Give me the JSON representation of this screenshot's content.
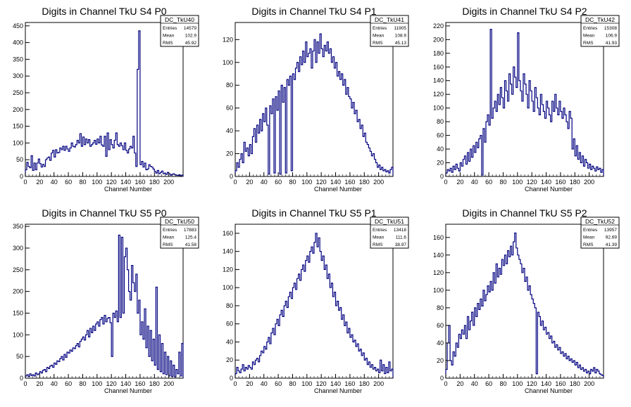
{
  "colors": {
    "histogram": "#000080",
    "axis": "#000000",
    "background": "#ffffff"
  },
  "chart_data": [
    {
      "type": "bar",
      "title": "Digits in Channel TkU S4 P0",
      "xlabel": "Channel Number",
      "ylabel": "",
      "xlim": [
        0,
        220
      ],
      "ylim": [
        0,
        460
      ],
      "xticks": [
        0,
        20,
        40,
        60,
        80,
        100,
        120,
        140,
        160,
        180,
        200
      ],
      "yticks": [
        0,
        50,
        100,
        150,
        200,
        250,
        300,
        350,
        400,
        450
      ],
      "stats": {
        "name": "DC_TkU40",
        "entries": "14579",
        "mean": "102.9",
        "rms": "45.92"
      },
      "series": [
        {
          "name": "",
          "x_start": 0,
          "bin_width": 2,
          "values": [
            20,
            42,
            30,
            26,
            62,
            18,
            40,
            20,
            40,
            52,
            38,
            28,
            36,
            30,
            50,
            55,
            58,
            48,
            70,
            78,
            58,
            80,
            70,
            72,
            85,
            80,
            90,
            78,
            90,
            82,
            75,
            85,
            100,
            90,
            88,
            95,
            108,
            100,
            128,
            90,
            118,
            95,
            112,
            100,
            110,
            90,
            95,
            100,
            108,
            96,
            112,
            100,
            120,
            94,
            90,
            120,
            60,
            130,
            80,
            110,
            95,
            85,
            108,
            130,
            95,
            90,
            100,
            92,
            80,
            100,
            78,
            70,
            82,
            90,
            85,
            120,
            70,
            30,
            320,
            435,
            35,
            45,
            28,
            40,
            20,
            22,
            35,
            30,
            28,
            22,
            15,
            10,
            18,
            8,
            12,
            16,
            8,
            10,
            6,
            12,
            8,
            4,
            6,
            8,
            5,
            4,
            3,
            5,
            2,
            4
          ]
        }
      ]
    },
    {
      "type": "bar",
      "title": "Digits in Channel TkU S4 P1",
      "xlabel": "Channel Number",
      "ylabel": "",
      "xlim": [
        0,
        220
      ],
      "ylim": [
        0,
        135
      ],
      "xticks": [
        0,
        20,
        40,
        60,
        80,
        100,
        120,
        140,
        160,
        180,
        200
      ],
      "yticks": [
        0,
        20,
        40,
        60,
        80,
        100,
        120
      ],
      "stats": {
        "name": "DC_TkU41",
        "entries": "11905",
        "mean": "108.9",
        "rms": "45.13"
      },
      "series": [
        {
          "name": "",
          "x_start": 0,
          "bin_width": 2,
          "values": [
            5,
            12,
            8,
            15,
            20,
            12,
            30,
            22,
            25,
            18,
            28,
            20,
            35,
            42,
            30,
            45,
            38,
            50,
            40,
            55,
            48,
            60,
            45,
            2,
            62,
            55,
            68,
            3,
            70,
            58,
            75,
            2,
            80,
            65,
            78,
            3,
            85,
            80,
            88,
            5,
            90,
            85,
            95,
            100,
            92,
            105,
            98,
            110,
            100,
            118,
            105,
            108,
            112,
            95,
            110,
            120,
            100,
            118,
            108,
            125,
            112,
            105,
            115,
            110,
            118,
            108,
            112,
            100,
            105,
            95,
            100,
            88,
            92,
            85,
            90,
            80,
            85,
            72,
            78,
            70,
            68,
            60,
            65,
            55,
            58,
            48,
            50,
            42,
            45,
            35,
            38,
            30,
            28,
            25,
            22,
            18,
            20,
            15,
            12,
            8,
            10,
            6,
            8,
            5,
            6,
            4,
            5,
            3,
            6,
            8
          ]
        }
      ]
    },
    {
      "type": "bar",
      "title": "Digits in Channel TkU S4 P2",
      "xlabel": "Channel Number",
      "ylabel": "",
      "xlim": [
        0,
        220
      ],
      "ylim": [
        0,
        225
      ],
      "xticks": [
        0,
        20,
        40,
        60,
        80,
        100,
        120,
        140,
        160,
        180,
        200
      ],
      "yticks": [
        0,
        20,
        40,
        60,
        80,
        100,
        120,
        140,
        160,
        180,
        200,
        220
      ],
      "stats": {
        "name": "DC_TkU42",
        "entries": "15308",
        "mean": "106.9",
        "rms": "41.93"
      },
      "series": [
        {
          "name": "",
          "x_start": 0,
          "bin_width": 2,
          "values": [
            5,
            10,
            8,
            12,
            6,
            15,
            10,
            18,
            12,
            8,
            20,
            15,
            25,
            30,
            18,
            35,
            22,
            40,
            28,
            45,
            35,
            50,
            42,
            55,
            60,
            2,
            70,
            50,
            80,
            90,
            75,
            215,
            85,
            100,
            110,
            95,
            120,
            105,
            130,
            115,
            100,
            140,
            125,
            110,
            150,
            135,
            120,
            160,
            145,
            130,
            210,
            140,
            125,
            110,
            150,
            135,
            120,
            100,
            140,
            125,
            110,
            95,
            130,
            115,
            100,
            90,
            120,
            105,
            95,
            85,
            110,
            100,
            90,
            80,
            110,
            95,
            120,
            100,
            90,
            110,
            95,
            85,
            100,
            90,
            80,
            70,
            95,
            85,
            40,
            55,
            30,
            45,
            25,
            35,
            20,
            30,
            15,
            25,
            20,
            12,
            18,
            10,
            15,
            12,
            8,
            14,
            10,
            12,
            6,
            10
          ]
        }
      ]
    },
    {
      "type": "bar",
      "title": "Digits in Channel TkU S5 P0",
      "xlabel": "Channel Number",
      "ylabel": "",
      "xlim": [
        0,
        220
      ],
      "ylim": [
        0,
        355
      ],
      "xticks": [
        0,
        20,
        40,
        60,
        80,
        100,
        120,
        140,
        160,
        180,
        200
      ],
      "yticks": [
        0,
        50,
        100,
        150,
        200,
        250,
        300,
        350
      ],
      "stats": {
        "name": "DC_TkU50",
        "entries": "17883",
        "mean": "125.4",
        "rms": "41.58"
      },
      "series": [
        {
          "name": "",
          "x_start": 0,
          "bin_width": 2,
          "values": [
            5,
            8,
            4,
            10,
            6,
            8,
            5,
            12,
            8,
            10,
            15,
            12,
            18,
            20,
            15,
            25,
            22,
            28,
            30,
            25,
            35,
            32,
            40,
            38,
            45,
            50,
            42,
            55,
            48,
            60,
            58,
            65,
            62,
            70,
            68,
            75,
            80,
            72,
            85,
            90,
            95,
            88,
            100,
            110,
            95,
            115,
            105,
            120,
            110,
            125,
            130,
            120,
            135,
            140,
            125,
            145,
            130,
            138,
            140,
            128,
            50,
            150,
            140,
            155,
            130,
            330,
            140,
            325,
            150,
            280,
            300,
            250,
            200,
            180,
            260,
            220,
            200,
            240,
            150,
            180,
            100,
            130,
            90,
            160,
            70,
            120,
            50,
            110,
            40,
            90,
            30,
            210,
            20,
            100,
            15,
            80,
            10,
            60,
            8,
            50,
            5,
            40,
            4,
            30,
            3,
            20,
            10,
            60,
            5,
            80
          ]
        }
      ]
    },
    {
      "type": "bar",
      "title": "Digits in Channel TkU S5 P1",
      "xlabel": "Channel Number",
      "ylabel": "",
      "xlim": [
        0,
        220
      ],
      "ylim": [
        0,
        170
      ],
      "xticks": [
        0,
        20,
        40,
        60,
        80,
        100,
        120,
        140,
        160,
        180,
        200
      ],
      "yticks": [
        0,
        20,
        40,
        60,
        80,
        100,
        120,
        140,
        160
      ],
      "stats": {
        "name": "DC_TkU51",
        "entries": "13418",
        "mean": "111.6",
        "rms": "38.97"
      },
      "series": [
        {
          "name": "",
          "x_start": 0,
          "bin_width": 2,
          "values": [
            5,
            12,
            8,
            6,
            10,
            15,
            8,
            12,
            10,
            14,
            12,
            10,
            18,
            15,
            20,
            22,
            18,
            25,
            30,
            28,
            35,
            32,
            40,
            45,
            38,
            50,
            55,
            48,
            60,
            65,
            58,
            70,
            75,
            68,
            80,
            85,
            78,
            90,
            95,
            88,
            100,
            105,
            98,
            110,
            115,
            108,
            120,
            125,
            118,
            130,
            135,
            128,
            140,
            145,
            138,
            150,
            160,
            145,
            155,
            140,
            130,
            135,
            120,
            125,
            110,
            115,
            100,
            105,
            90,
            95,
            80,
            85,
            75,
            78,
            65,
            70,
            58,
            62,
            50,
            55,
            45,
            48,
            40,
            42,
            35,
            38,
            30,
            32,
            25,
            28,
            20,
            22,
            15,
            18,
            12,
            15,
            10,
            12,
            8,
            10,
            6,
            20,
            8,
            15,
            5,
            12,
            6,
            18,
            8,
            10
          ]
        }
      ]
    },
    {
      "type": "bar",
      "title": "Digits in Channel TkU S5 P2",
      "xlabel": "Channel Number",
      "ylabel": "",
      "xlim": [
        0,
        220
      ],
      "ylim": [
        0,
        175
      ],
      "xticks": [
        0,
        20,
        40,
        60,
        80,
        100,
        120,
        140,
        160,
        180,
        200
      ],
      "yticks": [
        0,
        20,
        40,
        60,
        80,
        100,
        120,
        140,
        160
      ],
      "stats": {
        "name": "DC_TkU52",
        "entries": "13957",
        "mean": "92.69",
        "rms": "41.39"
      },
      "series": [
        {
          "name": "",
          "x_start": 0,
          "bin_width": 2,
          "values": [
            10,
            40,
            60,
            20,
            15,
            30,
            25,
            40,
            35,
            50,
            45,
            55,
            50,
            60,
            45,
            70,
            55,
            65,
            75,
            60,
            80,
            70,
            85,
            78,
            90,
            82,
            100,
            88,
            95,
            105,
            98,
            110,
            100,
            120,
            108,
            130,
            115,
            125,
            118,
            135,
            128,
            140,
            130,
            145,
            138,
            150,
            140,
            155,
            165,
            148,
            140,
            135,
            130,
            120,
            125,
            110,
            115,
            100,
            105,
            95,
            90,
            85,
            80,
            5,
            75,
            70,
            60,
            65,
            55,
            58,
            50,
            52,
            45,
            48,
            40,
            42,
            35,
            38,
            32,
            35,
            28,
            30,
            25,
            28,
            22,
            25,
            20,
            22,
            18,
            20,
            15,
            18,
            12,
            15,
            10,
            12,
            8,
            10,
            6,
            8,
            5,
            10,
            8,
            12,
            6,
            10,
            8,
            5,
            4,
            3
          ]
        }
      ]
    }
  ]
}
